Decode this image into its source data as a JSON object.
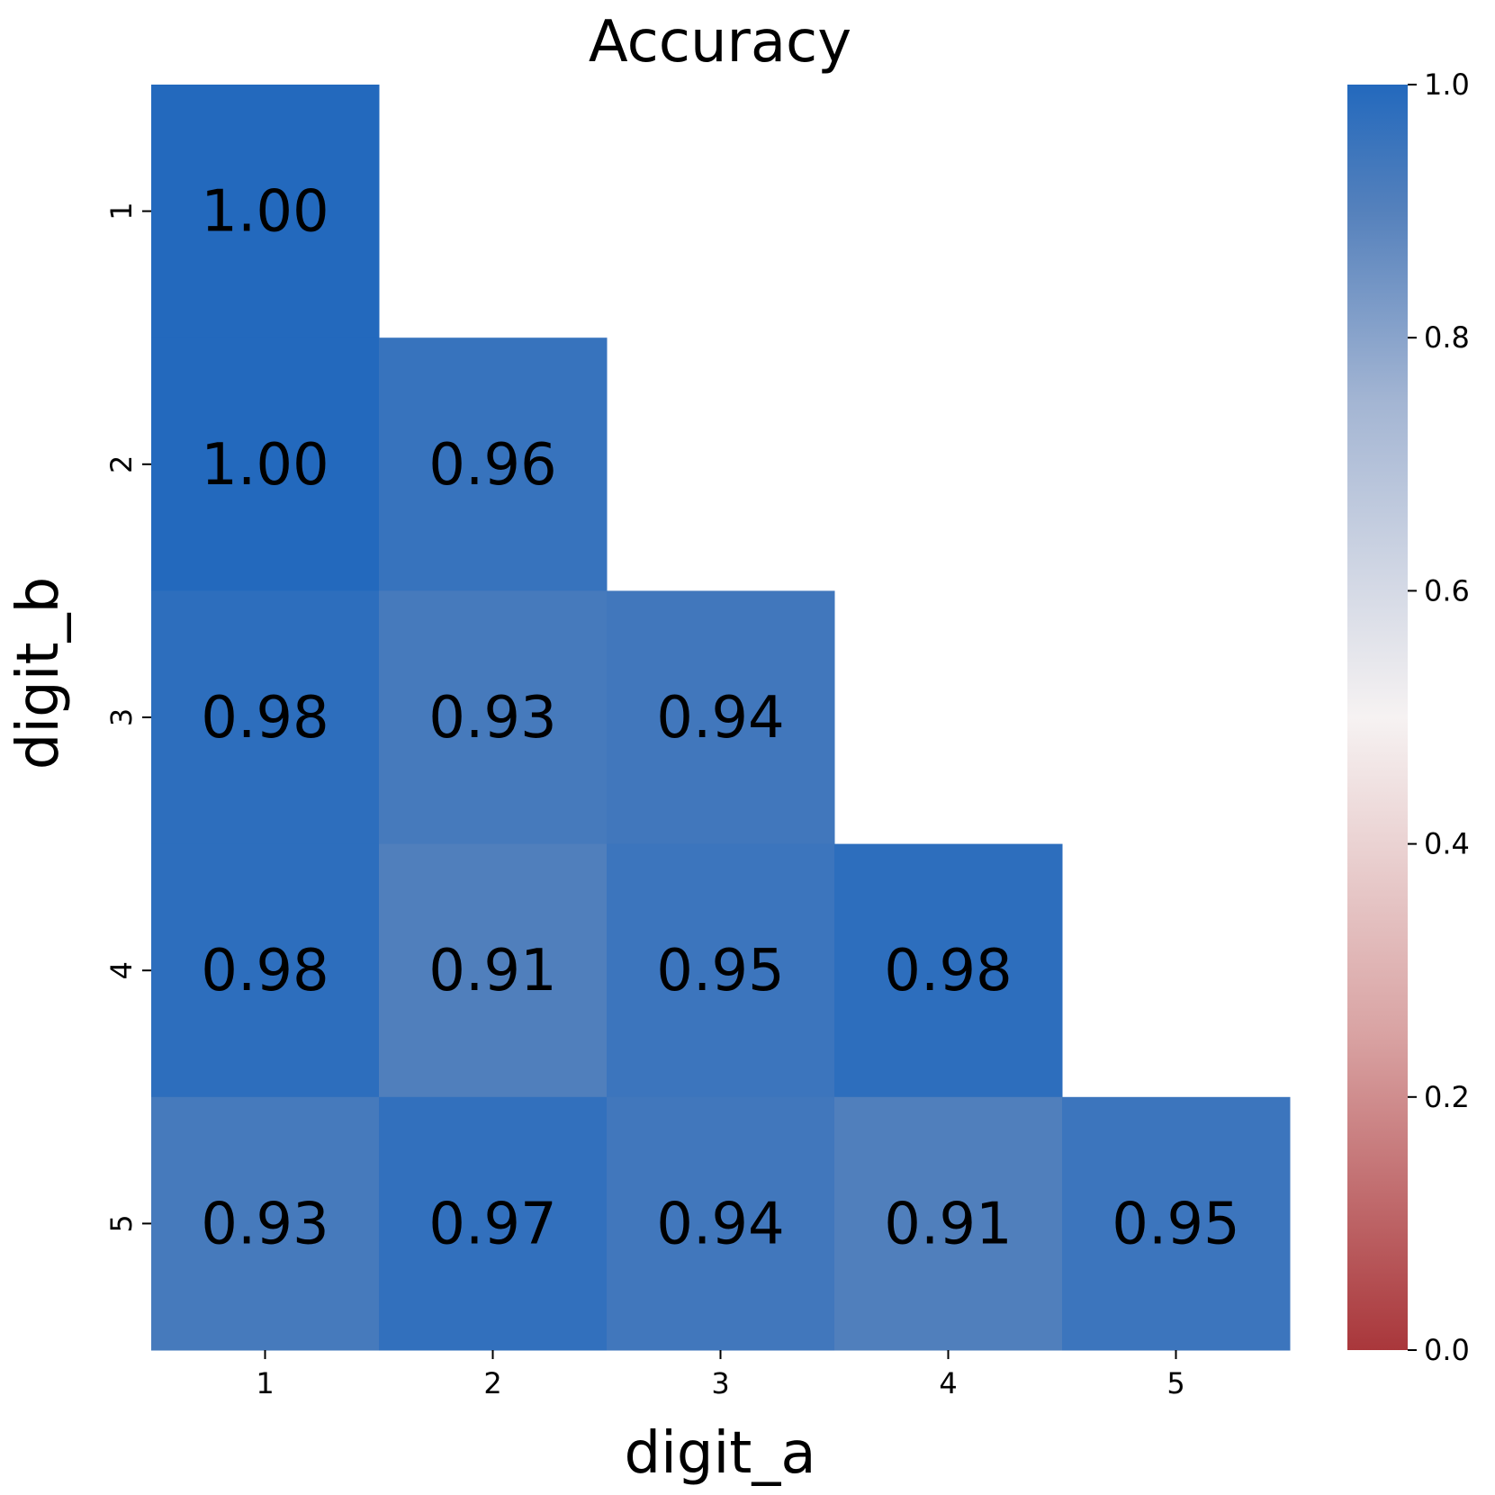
{
  "chart_data": {
    "type": "heatmap",
    "title": "Accuracy",
    "xlabel": "digit_a",
    "ylabel": "digit_b",
    "x_categories": [
      "1",
      "2",
      "3",
      "4",
      "5"
    ],
    "y_categories": [
      "1",
      "2",
      "3",
      "4",
      "5"
    ],
    "values": [
      [
        1.0,
        null,
        null,
        null,
        null
      ],
      [
        1.0,
        0.96,
        null,
        null,
        null
      ],
      [
        0.98,
        0.93,
        0.94,
        null,
        null
      ],
      [
        0.98,
        0.91,
        0.95,
        0.98,
        null
      ],
      [
        0.93,
        0.97,
        0.94,
        0.91,
        0.95
      ]
    ],
    "labels": [
      [
        "1.00",
        null,
        null,
        null,
        null
      ],
      [
        "1.00",
        "0.96",
        null,
        null,
        null
      ],
      [
        "0.98",
        "0.93",
        "0.94",
        null,
        null
      ],
      [
        "0.98",
        "0.91",
        "0.95",
        "0.98",
        null
      ],
      [
        "0.93",
        "0.97",
        "0.94",
        "0.91",
        "0.95"
      ]
    ],
    "colorbar": {
      "range": [
        0.0,
        1.0
      ],
      "ticks": [
        "0.0",
        "0.2",
        "0.4",
        "0.6",
        "0.8",
        "1.0"
      ],
      "tick_values": [
        0.0,
        0.2,
        0.4,
        0.6,
        0.8,
        1.0
      ],
      "colormap_stops": [
        {
          "v": 0.0,
          "c": "#a9373b"
        },
        {
          "v": 0.25,
          "c": "#d9a3a3"
        },
        {
          "v": 0.5,
          "c": "#f6f2f2"
        },
        {
          "v": 0.75,
          "c": "#a3b5d3"
        },
        {
          "v": 0.9,
          "c": "#5581bc"
        },
        {
          "v": 1.0,
          "c": "#2369bd"
        }
      ]
    }
  }
}
